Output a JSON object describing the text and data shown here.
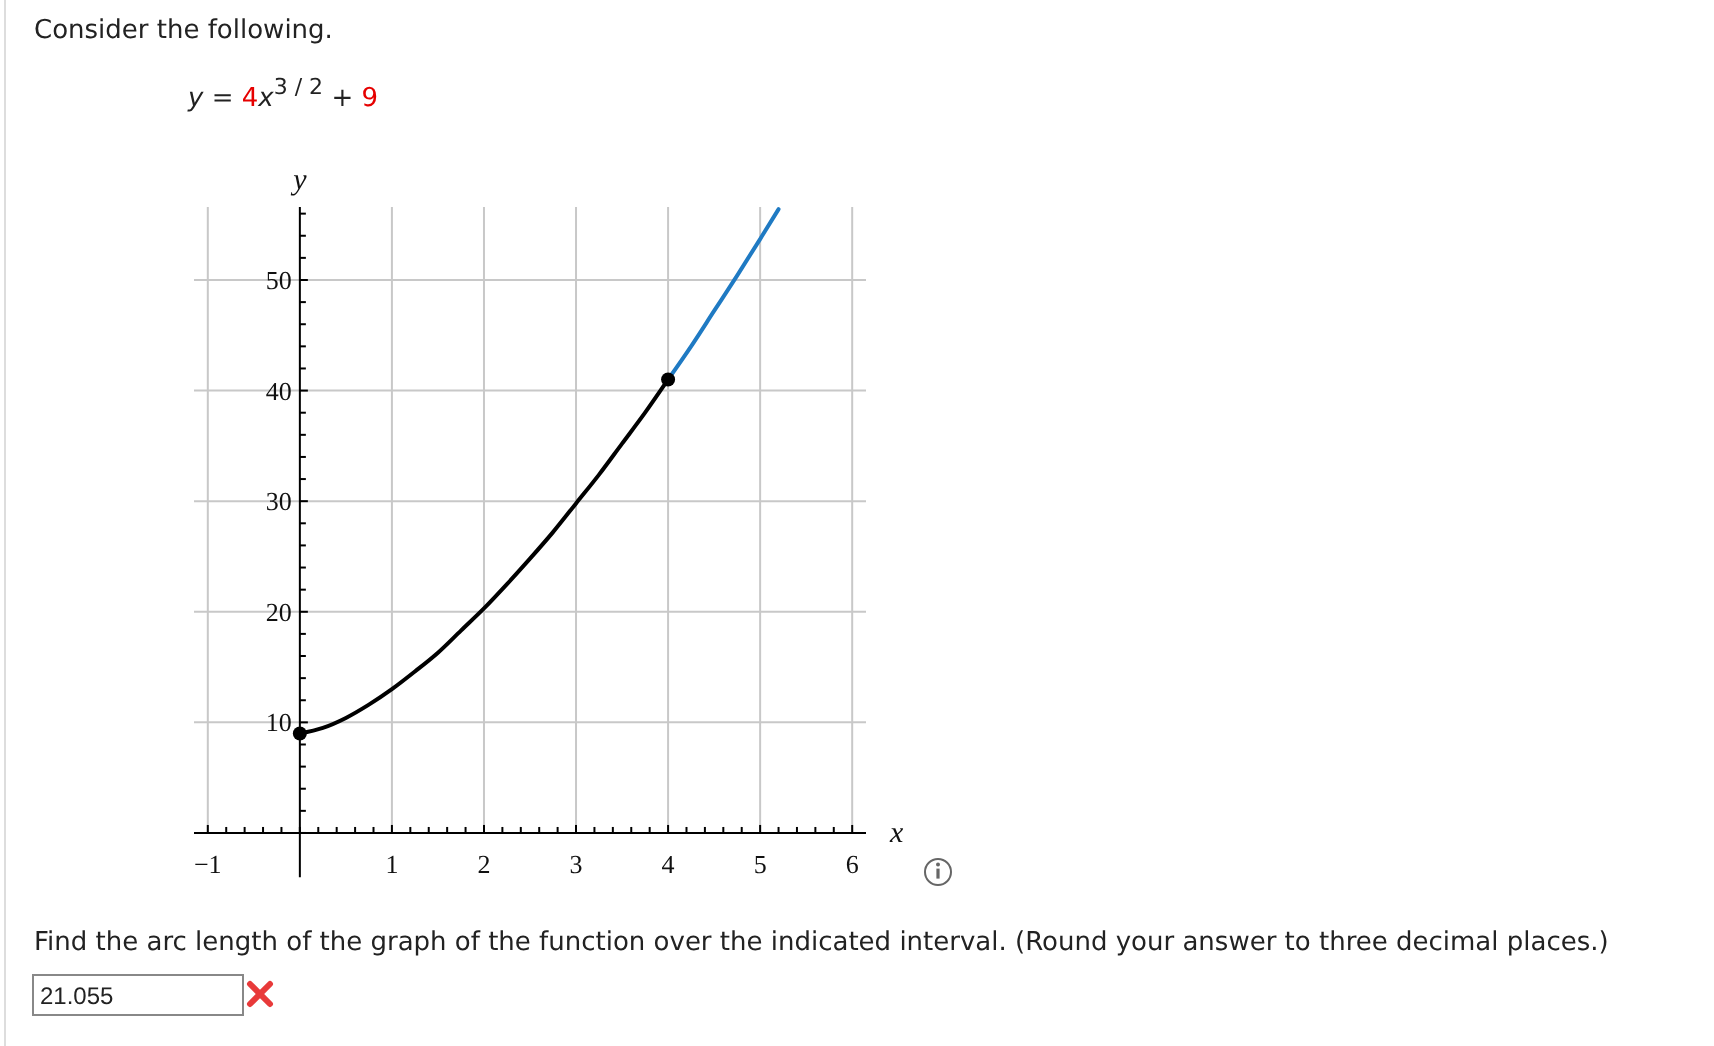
{
  "chart_data": {
    "type": "line",
    "title": "Consider the following.",
    "subtitle": "y = 4x$^{3 / 2}$ + 9",
    "xlabel": "x",
    "ylabel": "y",
    "annotations": [
      "Find the arc length of the graph of the function over the indicated interval. (Round your answer to three decimal places.)",
      "21.055"
    ],
    "xlim": [
      -1.15,
      6.15
    ],
    "ylim": [
      -4,
      56.6
    ],
    "xticks": [
      {
        "value": -1,
        "label": "−1"
      },
      {
        "value": -0.8,
        "label": null
      },
      {
        "value": -0.6,
        "label": null
      },
      {
        "value": -0.4,
        "label": null
      },
      {
        "value": -0.2,
        "label": null
      },
      {
        "value": 0,
        "label": null
      },
      {
        "value": 0.2,
        "label": null
      },
      {
        "value": 0.4,
        "label": null
      },
      {
        "value": 0.6,
        "label": null
      },
      {
        "value": 0.8,
        "label": null
      },
      1,
      {
        "value": 1.2,
        "label": null
      },
      {
        "value": 1.4,
        "label": null
      },
      {
        "value": 1.6,
        "label": null
      },
      {
        "value": 1.8,
        "label": null
      },
      2,
      {
        "value": 2.2,
        "label": null
      },
      {
        "value": 2.4,
        "label": null
      },
      {
        "value": 2.6,
        "label": null
      },
      {
        "value": 2.8,
        "label": null
      },
      3,
      {
        "value": 3.2,
        "label": null
      },
      {
        "value": 3.4,
        "label": null
      },
      {
        "value": 3.6,
        "label": null
      },
      {
        "value": 3.8,
        "label": null
      },
      4,
      {
        "value": 4.2,
        "label": null
      },
      {
        "value": 4.4,
        "label": null
      },
      {
        "value": 4.6,
        "label": null
      },
      {
        "value": 4.8,
        "label": null
      },
      5,
      {
        "value": 5.2,
        "label": null
      },
      {
        "value": 5.4,
        "label": null
      },
      {
        "value": 5.6,
        "label": null
      },
      {
        "value": 5.8,
        "label": null
      },
      6
    ],
    "yticks": [
      {
        "value": 0,
        "label": null
      },
      {
        "value": 2,
        "label": null
      },
      {
        "value": 4,
        "label": null
      },
      {
        "value": 6,
        "label": null
      },
      {
        "value": 8,
        "label": null
      },
      10,
      {
        "value": 12,
        "label": null
      },
      {
        "value": 14,
        "label": null
      },
      {
        "value": 16,
        "label": null
      },
      {
        "value": 18,
        "label": null
      },
      20,
      {
        "value": 22,
        "label": null
      },
      {
        "value": 24,
        "label": null
      },
      {
        "value": 26,
        "label": null
      },
      {
        "value": 28,
        "label": null
      },
      30,
      {
        "value": 32,
        "label": null
      },
      {
        "value": 34,
        "label": null
      },
      {
        "value": 36,
        "label": null
      },
      {
        "value": 38,
        "label": null
      },
      40,
      {
        "value": 42,
        "label": null
      },
      {
        "value": 44,
        "label": null
      },
      {
        "value": 46,
        "label": null
      },
      {
        "value": 48,
        "label": null
      },
      50,
      {
        "value": 52,
        "label": null
      },
      {
        "value": 54,
        "label": null
      },
      {
        "value": 56,
        "label": null
      }
    ],
    "grid": true,
    "series": [
      {
        "color": "#1f7ac3",
        "x": [
          4,
          4.25,
          4.5,
          4.75,
          5,
          5.2
        ],
        "values": [
          41,
          44.0,
          47.2,
          50.4,
          53.7,
          56.4
        ]
      },
      {
        "color": "#000000",
        "x": [
          0,
          0.25,
          0.5,
          0.75,
          1,
          1.25,
          1.5,
          1.75,
          2,
          2.25,
          2.5,
          2.75,
          3,
          3.25,
          3.5,
          3.75,
          4
        ],
        "values": [
          9,
          9.5,
          10.4,
          11.6,
          13,
          14.6,
          16.3,
          18.3,
          20.3,
          22.5,
          24.8,
          27.2,
          29.8,
          32.4,
          35.2,
          38.0,
          41
        ]
      },
      {
        "type": "scatter",
        "color": "#000000",
        "x": [
          0,
          4
        ],
        "values": [
          9,
          41
        ]
      }
    ]
  }
}
